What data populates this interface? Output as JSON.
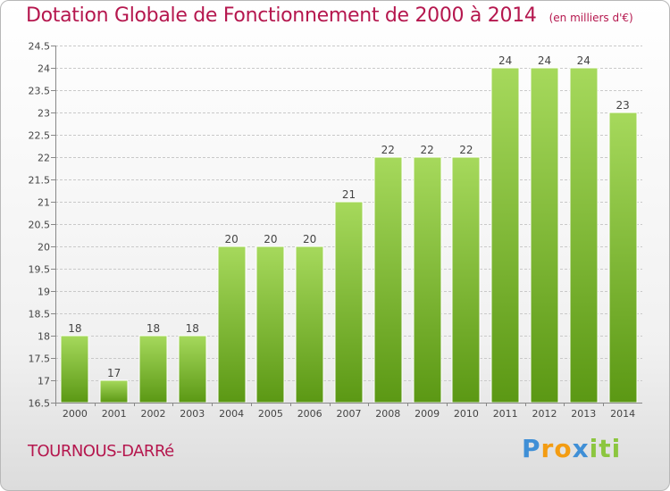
{
  "header": {
    "title": "Dotation Globale de Fonctionnement de 2000 à 2014",
    "subtitle": "(en milliers d'€)"
  },
  "footer": {
    "commune": "TOURNOUS-DARRé",
    "logo": "Proxiti"
  },
  "colors": {
    "title": "#b5174e",
    "bar_light": "#a3d65a",
    "bar_dark": "#5a9612",
    "grid": "#c8c8c8"
  },
  "chart_data": {
    "type": "bar",
    "title": "Dotation Globale de Fonctionnement de 2000 à 2014",
    "subtitle": "(en milliers d'€)",
    "categories": [
      "2000",
      "2001",
      "2002",
      "2003",
      "2004",
      "2005",
      "2006",
      "2007",
      "2008",
      "2009",
      "2010",
      "2011",
      "2012",
      "2013",
      "2014"
    ],
    "values": [
      18,
      17,
      18,
      18,
      20,
      20,
      20,
      21,
      22,
      22,
      22,
      24,
      24,
      24,
      23
    ],
    "value_labels": [
      "18",
      "17",
      "18",
      "18",
      "20",
      "20",
      "20",
      "21",
      "22",
      "22",
      "22",
      "24",
      "24",
      "24",
      "23"
    ],
    "ylim": [
      16.5,
      24.5
    ],
    "yticks": [
      "16.5",
      "17",
      "17.5",
      "18",
      "18.5",
      "19",
      "19.5",
      "20",
      "20.5",
      "21",
      "21.5",
      "22",
      "22.5",
      "23",
      "23.5",
      "24",
      "24.5"
    ],
    "grid": true,
    "legend": "none"
  }
}
